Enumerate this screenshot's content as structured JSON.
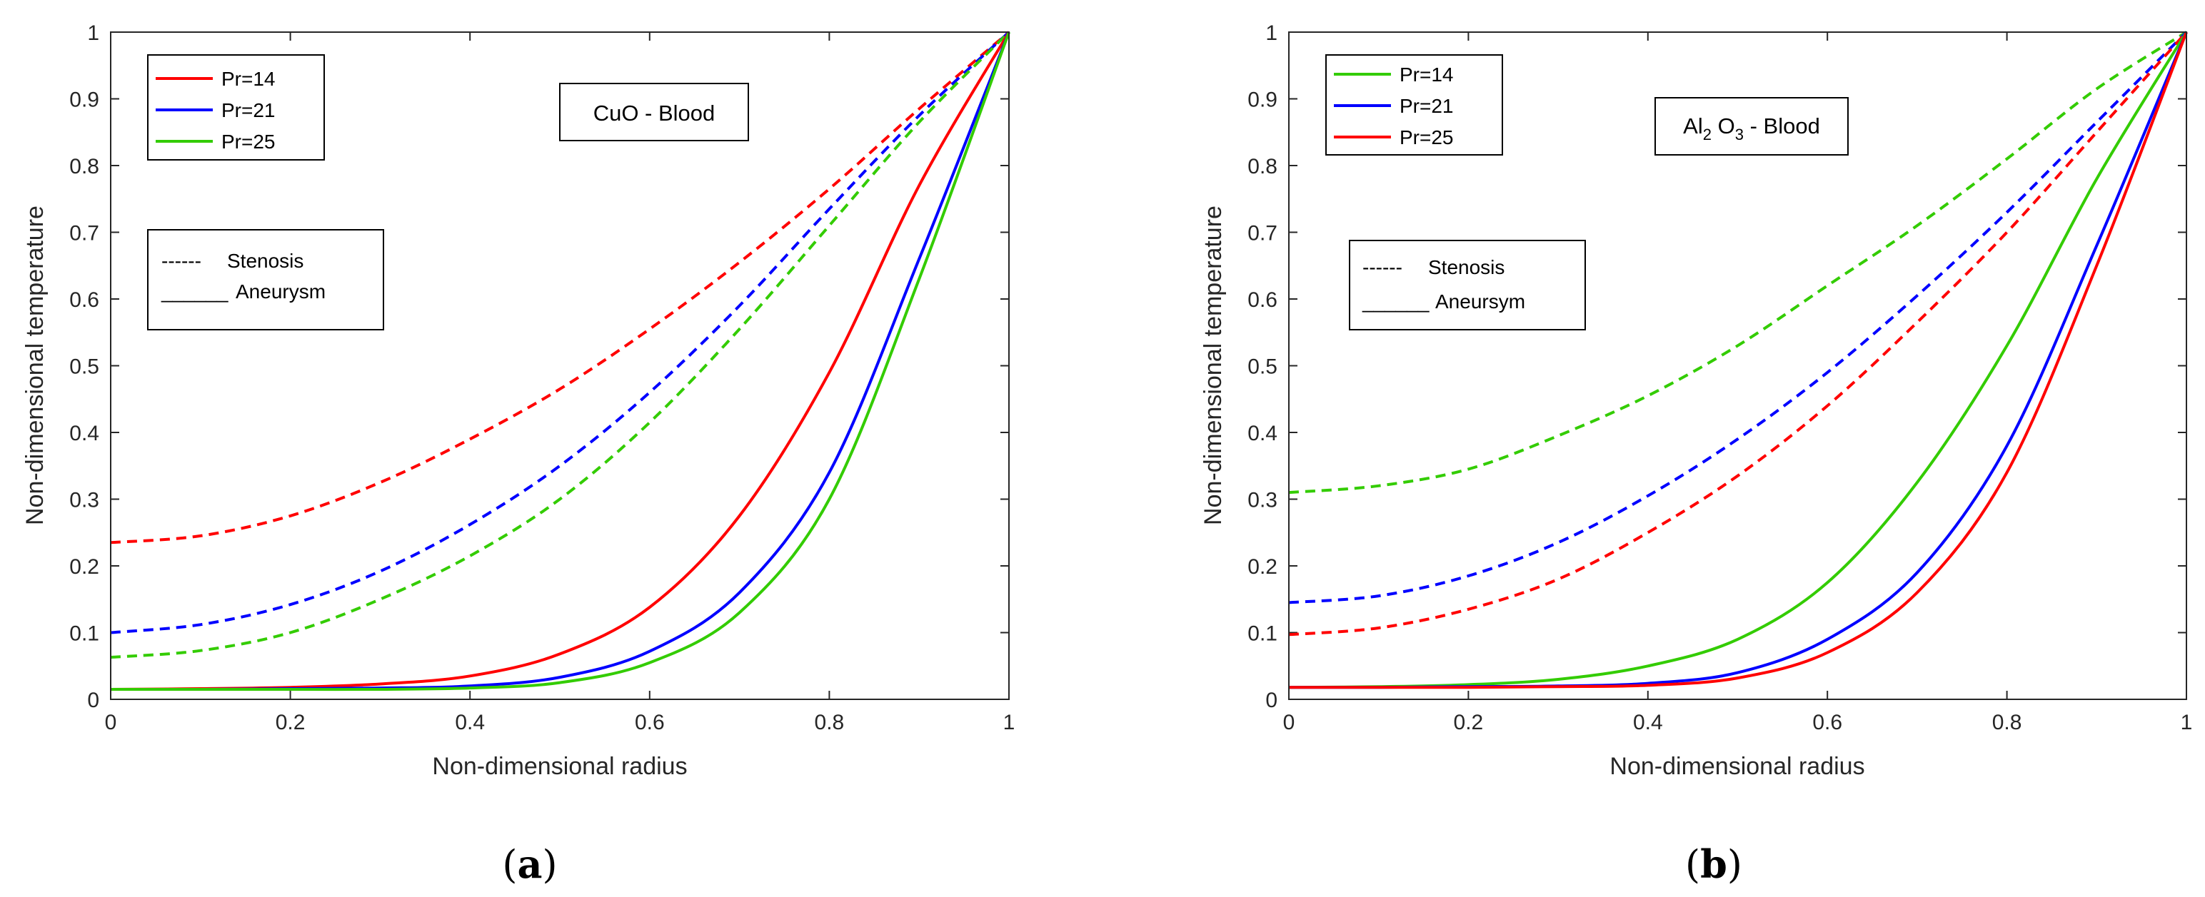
{
  "chart_data": [
    {
      "type": "line",
      "panel_label": "(a)",
      "panel_letter": "a",
      "xlabel": "Non-dimensional radius",
      "ylabel": "Non-dimensional temperature",
      "xlim": [
        0,
        1
      ],
      "ylim": [
        0,
        1
      ],
      "xticks": [
        "0",
        "0.2",
        "0.4",
        "0.6",
        "0.8",
        "1"
      ],
      "yticks": [
        "0",
        "0.1",
        "0.2",
        "0.3",
        "0.4",
        "0.5",
        "0.6",
        "0.7",
        "0.8",
        "0.9",
        "1"
      ],
      "annotation": {
        "main": "CuO - Blood"
      },
      "legend_pr": [
        {
          "label": "Pr=14",
          "color": "#ff0000"
        },
        {
          "label": "Pr=21",
          "color": "#0000ff"
        },
        {
          "label": "Pr=25",
          "color": "#33cc00"
        }
      ],
      "legend_style": [
        {
          "label": "Stenosis",
          "dash": "------"
        },
        {
          "label": "Aneurysm",
          "dash": "______"
        }
      ],
      "x": [
        0,
        0.1,
        0.2,
        0.3,
        0.4,
        0.5,
        0.6,
        0.7,
        0.8,
        0.9,
        1.0
      ],
      "series": [
        {
          "name": "Pr=14 Stenosis",
          "color": "#ff0000",
          "style": "dashed",
          "values": [
            0.235,
            0.245,
            0.275,
            0.325,
            0.39,
            0.465,
            0.555,
            0.655,
            0.765,
            0.885,
            1.0
          ]
        },
        {
          "name": "Pr=21 Stenosis",
          "color": "#0000ff",
          "style": "dashed",
          "values": [
            0.1,
            0.112,
            0.142,
            0.192,
            0.262,
            0.35,
            0.46,
            0.59,
            0.735,
            0.875,
            1.0
          ]
        },
        {
          "name": "Pr=25 Stenosis",
          "color": "#33cc00",
          "style": "dashed",
          "values": [
            0.063,
            0.073,
            0.1,
            0.15,
            0.215,
            0.3,
            0.415,
            0.555,
            0.71,
            0.865,
            1.0
          ]
        },
        {
          "name": "Pr=14 Aneurysm",
          "color": "#ff0000",
          "style": "solid",
          "values": [
            0.015,
            0.016,
            0.018,
            0.023,
            0.035,
            0.068,
            0.138,
            0.275,
            0.49,
            0.77,
            1.0
          ]
        },
        {
          "name": "Pr=21 Aneurysm",
          "color": "#0000ff",
          "style": "solid",
          "values": [
            0.015,
            0.015,
            0.016,
            0.017,
            0.02,
            0.033,
            0.072,
            0.16,
            0.34,
            0.66,
            1.0
          ]
        },
        {
          "name": "Pr=25 Aneurysm",
          "color": "#33cc00",
          "style": "solid",
          "values": [
            0.015,
            0.015,
            0.015,
            0.015,
            0.017,
            0.025,
            0.055,
            0.13,
            0.3,
            0.63,
            1.0
          ]
        }
      ]
    },
    {
      "type": "line",
      "panel_label": "(b)",
      "panel_letter": "b",
      "xlabel": "Non-dimensional radius",
      "ylabel": "Non-dimensional temperature",
      "xlim": [
        0,
        1
      ],
      "ylim": [
        0,
        1
      ],
      "xticks": [
        "0",
        "0.2",
        "0.4",
        "0.6",
        "0.8",
        "1"
      ],
      "yticks": [
        "0",
        "0.1",
        "0.2",
        "0.3",
        "0.4",
        "0.5",
        "0.6",
        "0.7",
        "0.8",
        "0.9",
        "1"
      ],
      "annotation": {
        "al": "Al",
        "sub1": "2",
        "o": " O",
        "sub2": "3",
        "rest": " - Blood"
      },
      "legend_pr": [
        {
          "label": "Pr=14",
          "color": "#33cc00"
        },
        {
          "label": "Pr=21",
          "color": "#0000ff"
        },
        {
          "label": "Pr=25",
          "color": "#ff0000"
        }
      ],
      "legend_style": [
        {
          "label": "Stenosis",
          "dash": "------"
        },
        {
          "label": "Aneursym",
          "dash": "______"
        }
      ],
      "x": [
        0,
        0.1,
        0.2,
        0.3,
        0.4,
        0.5,
        0.6,
        0.7,
        0.8,
        0.9,
        1.0
      ],
      "series": [
        {
          "name": "Pr=14 Stenosis",
          "color": "#33cc00",
          "style": "dashed",
          "values": [
            0.31,
            0.32,
            0.345,
            0.395,
            0.455,
            0.53,
            0.62,
            0.71,
            0.81,
            0.915,
            1.0
          ]
        },
        {
          "name": "Pr=21 Stenosis",
          "color": "#0000ff",
          "style": "dashed",
          "values": [
            0.145,
            0.155,
            0.185,
            0.235,
            0.305,
            0.39,
            0.49,
            0.605,
            0.73,
            0.865,
            1.0
          ]
        },
        {
          "name": "Pr=25 Stenosis",
          "color": "#ff0000",
          "style": "dashed",
          "values": [
            0.097,
            0.107,
            0.135,
            0.18,
            0.25,
            0.335,
            0.44,
            0.565,
            0.7,
            0.85,
            1.0
          ]
        },
        {
          "name": "Pr=14 Aneurysm",
          "color": "#33cc00",
          "style": "solid",
          "values": [
            0.018,
            0.019,
            0.022,
            0.03,
            0.05,
            0.09,
            0.175,
            0.325,
            0.53,
            0.78,
            1.0
          ]
        },
        {
          "name": "Pr=21 Aneurysm",
          "color": "#0000ff",
          "style": "solid",
          "values": [
            0.018,
            0.018,
            0.019,
            0.02,
            0.024,
            0.04,
            0.09,
            0.19,
            0.38,
            0.68,
            1.0
          ]
        },
        {
          "name": "Pr=25 Aneurysm",
          "color": "#ff0000",
          "style": "solid",
          "values": [
            0.018,
            0.018,
            0.018,
            0.019,
            0.021,
            0.032,
            0.07,
            0.16,
            0.34,
            0.65,
            1.0
          ]
        }
      ]
    }
  ]
}
